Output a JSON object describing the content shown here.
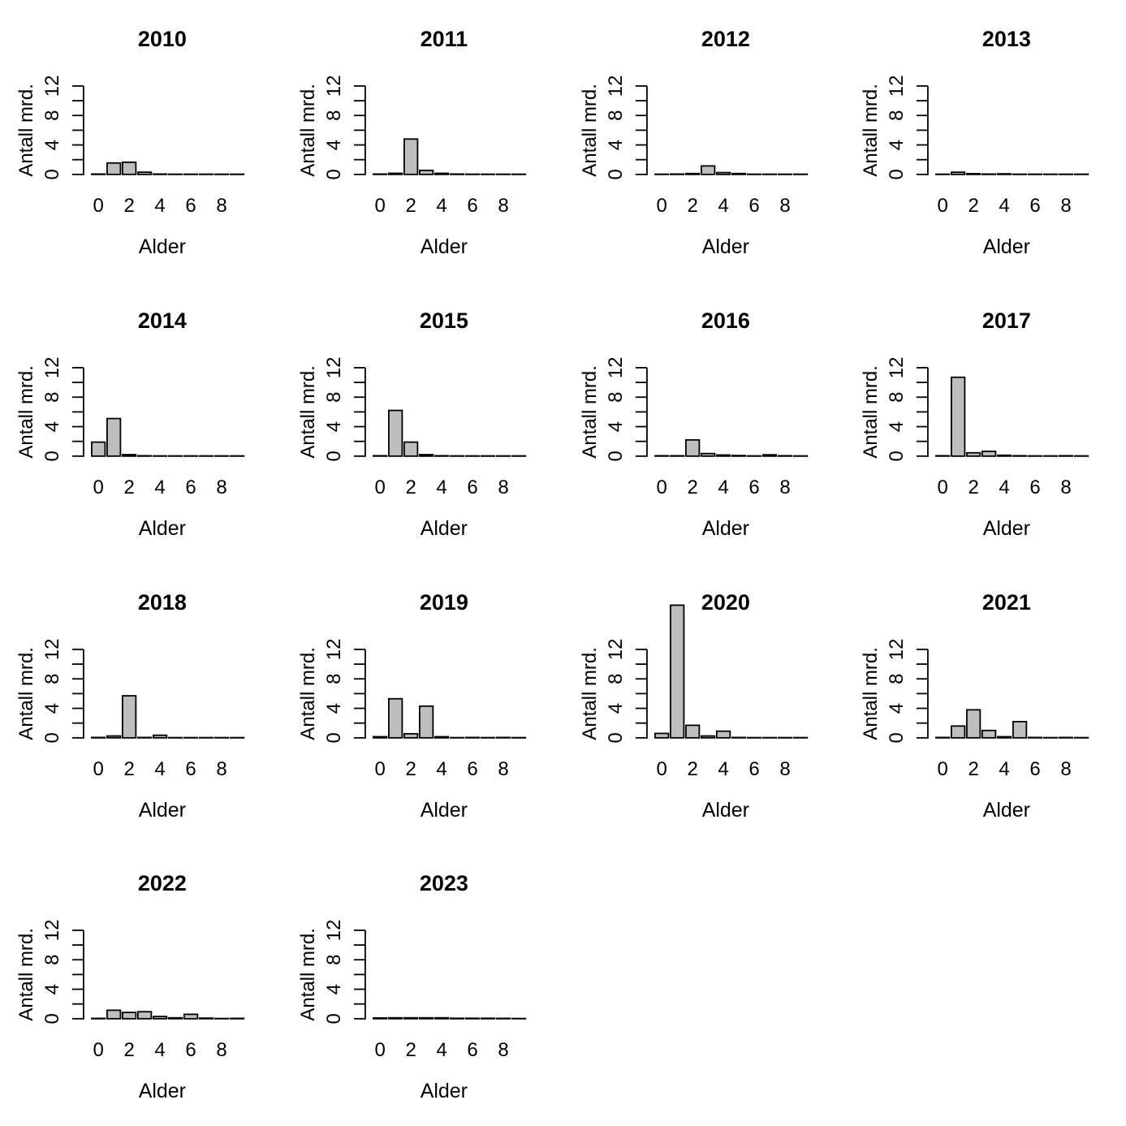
{
  "style": {
    "background": "#FFFFFF",
    "bar_fill": "#BEBEBE",
    "bar_stroke": "#000000",
    "axis_color": "#000000",
    "text_color": "#000000"
  },
  "chart_data": [
    {
      "type": "bar",
      "title": "2010",
      "xlabel": "Alder",
      "ylabel": "Antall mrd.",
      "categories": [
        0,
        1,
        2,
        3,
        4,
        5,
        6,
        7,
        8,
        9
      ],
      "values": [
        0.05,
        1.55,
        1.65,
        0.3,
        0.05,
        0.03,
        0.03,
        0.03,
        0.03,
        0.03
      ],
      "ylim": [
        0,
        12
      ],
      "ytick_labels": [
        0,
        4,
        8,
        12
      ],
      "ytick_marks": [
        0,
        2,
        4,
        6,
        8,
        10,
        12
      ],
      "xtick_labels": [
        0,
        2,
        4,
        6,
        8
      ],
      "grid": false,
      "legend": false
    },
    {
      "type": "bar",
      "title": "2011",
      "xlabel": "Alder",
      "ylabel": "Antall mrd.",
      "categories": [
        0,
        1,
        2,
        3,
        4,
        5,
        6,
        7,
        8,
        9
      ],
      "values": [
        0.05,
        0.15,
        4.8,
        0.55,
        0.15,
        0.05,
        0.03,
        0.03,
        0.03,
        0.03
      ],
      "ylim": [
        0,
        12
      ],
      "ytick_labels": [
        0,
        4,
        8,
        12
      ],
      "ytick_marks": [
        0,
        2,
        4,
        6,
        8,
        10,
        12
      ],
      "xtick_labels": [
        0,
        2,
        4,
        6,
        8
      ],
      "grid": false,
      "legend": false
    },
    {
      "type": "bar",
      "title": "2012",
      "xlabel": "Alder",
      "ylabel": "Antall mrd.",
      "categories": [
        0,
        1,
        2,
        3,
        4,
        5,
        6,
        7,
        8,
        9
      ],
      "values": [
        0.03,
        0.05,
        0.12,
        1.15,
        0.25,
        0.12,
        0.03,
        0.03,
        0.03,
        0.03
      ],
      "ylim": [
        0,
        12
      ],
      "ytick_labels": [
        0,
        4,
        8,
        12
      ],
      "ytick_marks": [
        0,
        2,
        4,
        6,
        8,
        10,
        12
      ],
      "xtick_labels": [
        0,
        2,
        4,
        6,
        8
      ],
      "grid": false,
      "legend": false
    },
    {
      "type": "bar",
      "title": "2013",
      "xlabel": "Alder",
      "ylabel": "Antall mrd.",
      "categories": [
        0,
        1,
        2,
        3,
        4,
        5,
        6,
        7,
        8,
        9
      ],
      "values": [
        0.03,
        0.3,
        0.1,
        0.05,
        0.08,
        0.03,
        0.03,
        0.03,
        0.03,
        0.03
      ],
      "ylim": [
        0,
        12
      ],
      "ytick_labels": [
        0,
        4,
        8,
        12
      ],
      "ytick_marks": [
        0,
        2,
        4,
        6,
        8,
        10,
        12
      ],
      "xtick_labels": [
        0,
        2,
        4,
        6,
        8
      ],
      "grid": false,
      "legend": false
    },
    {
      "type": "bar",
      "title": "2014",
      "xlabel": "Alder",
      "ylabel": "Antall mrd.",
      "categories": [
        0,
        1,
        2,
        3,
        4,
        5,
        6,
        7,
        8,
        9
      ],
      "values": [
        1.9,
        5.1,
        0.2,
        0.05,
        0.03,
        0.03,
        0.03,
        0.03,
        0.03,
        0.03
      ],
      "ylim": [
        0,
        12
      ],
      "ytick_labels": [
        0,
        4,
        8,
        12
      ],
      "ytick_marks": [
        0,
        2,
        4,
        6,
        8,
        10,
        12
      ],
      "xtick_labels": [
        0,
        2,
        4,
        6,
        8
      ],
      "grid": false,
      "legend": false
    },
    {
      "type": "bar",
      "title": "2015",
      "xlabel": "Alder",
      "ylabel": "Antall mrd.",
      "categories": [
        0,
        1,
        2,
        3,
        4,
        5,
        6,
        7,
        8,
        9
      ],
      "values": [
        0.05,
        6.2,
        1.9,
        0.2,
        0.05,
        0.03,
        0.03,
        0.03,
        0.03,
        0.03
      ],
      "ylim": [
        0,
        12
      ],
      "ytick_labels": [
        0,
        4,
        8,
        12
      ],
      "ytick_marks": [
        0,
        2,
        4,
        6,
        8,
        10,
        12
      ],
      "xtick_labels": [
        0,
        2,
        4,
        6,
        8
      ],
      "grid": false,
      "legend": false
    },
    {
      "type": "bar",
      "title": "2016",
      "xlabel": "Alder",
      "ylabel": "Antall mrd.",
      "categories": [
        0,
        1,
        2,
        3,
        4,
        5,
        6,
        7,
        8,
        9
      ],
      "values": [
        0.05,
        0.05,
        2.2,
        0.35,
        0.15,
        0.08,
        0.03,
        0.18,
        0.05,
        0.03
      ],
      "ylim": [
        0,
        12
      ],
      "ytick_labels": [
        0,
        4,
        8,
        12
      ],
      "ytick_marks": [
        0,
        2,
        4,
        6,
        8,
        10,
        12
      ],
      "xtick_labels": [
        0,
        2,
        4,
        6,
        8
      ],
      "grid": false,
      "legend": false
    },
    {
      "type": "bar",
      "title": "2017",
      "xlabel": "Alder",
      "ylabel": "Antall mrd.",
      "categories": [
        0,
        1,
        2,
        3,
        4,
        5,
        6,
        7,
        8,
        9
      ],
      "values": [
        0.05,
        10.7,
        0.45,
        0.65,
        0.12,
        0.05,
        0.03,
        0.03,
        0.05,
        0.03
      ],
      "ylim": [
        0,
        12
      ],
      "ytick_labels": [
        0,
        4,
        8,
        12
      ],
      "ytick_marks": [
        0,
        2,
        4,
        6,
        8,
        10,
        12
      ],
      "xtick_labels": [
        0,
        2,
        4,
        6,
        8
      ],
      "grid": false,
      "legend": false
    },
    {
      "type": "bar",
      "title": "2018",
      "xlabel": "Alder",
      "ylabel": "Antall mrd.",
      "categories": [
        0,
        1,
        2,
        3,
        4,
        5,
        6,
        7,
        8,
        9
      ],
      "values": [
        0.05,
        0.25,
        5.7,
        0.05,
        0.35,
        0.03,
        0.03,
        0.03,
        0.03,
        0.03
      ],
      "ylim": [
        0,
        12
      ],
      "ytick_labels": [
        0,
        4,
        8,
        12
      ],
      "ytick_marks": [
        0,
        2,
        4,
        6,
        8,
        10,
        12
      ],
      "xtick_labels": [
        0,
        2,
        4,
        6,
        8
      ],
      "grid": false,
      "legend": false
    },
    {
      "type": "bar",
      "title": "2019",
      "xlabel": "Alder",
      "ylabel": "Antall mrd.",
      "categories": [
        0,
        1,
        2,
        3,
        4,
        5,
        6,
        7,
        8,
        9
      ],
      "values": [
        0.15,
        5.3,
        0.55,
        4.3,
        0.15,
        0.03,
        0.05,
        0.03,
        0.05,
        0.03
      ],
      "ylim": [
        0,
        12
      ],
      "ytick_labels": [
        0,
        4,
        8,
        12
      ],
      "ytick_marks": [
        0,
        2,
        4,
        6,
        8,
        10,
        12
      ],
      "xtick_labels": [
        0,
        2,
        4,
        6,
        8
      ],
      "grid": false,
      "legend": false
    },
    {
      "type": "bar",
      "title": "2020",
      "xlabel": "Alder",
      "ylabel": "Antall mrd.",
      "categories": [
        0,
        1,
        2,
        3,
        4,
        5,
        6,
        7,
        8,
        9
      ],
      "values": [
        0.6,
        18.0,
        1.7,
        0.25,
        0.9,
        0.05,
        0.03,
        0.03,
        0.03,
        0.03
      ],
      "ylim": [
        0,
        12
      ],
      "ytick_labels": [
        0,
        4,
        8,
        12
      ],
      "ytick_marks": [
        0,
        2,
        4,
        6,
        8,
        10,
        12
      ],
      "xtick_labels": [
        0,
        2,
        4,
        6,
        8
      ],
      "grid": false,
      "legend": false,
      "note_bar_exceeds_axis": true
    },
    {
      "type": "bar",
      "title": "2021",
      "xlabel": "Alder",
      "ylabel": "Antall mrd.",
      "categories": [
        0,
        1,
        2,
        3,
        4,
        5,
        6,
        7,
        8,
        9
      ],
      "values": [
        0.05,
        1.6,
        3.8,
        1.0,
        0.15,
        2.2,
        0.05,
        0.03,
        0.05,
        0.03
      ],
      "ylim": [
        0,
        12
      ],
      "ytick_labels": [
        0,
        4,
        8,
        12
      ],
      "ytick_marks": [
        0,
        2,
        4,
        6,
        8,
        10,
        12
      ],
      "xtick_labels": [
        0,
        2,
        4,
        6,
        8
      ],
      "grid": false,
      "legend": false
    },
    {
      "type": "bar",
      "title": "2022",
      "xlabel": "Alder",
      "ylabel": "Antall mrd.",
      "categories": [
        0,
        1,
        2,
        3,
        4,
        5,
        6,
        7,
        8,
        9
      ],
      "values": [
        0.05,
        1.15,
        0.85,
        0.95,
        0.3,
        0.12,
        0.6,
        0.08,
        0.03,
        0.05
      ],
      "ylim": [
        0,
        12
      ],
      "ytick_labels": [
        0,
        4,
        8,
        12
      ],
      "ytick_marks": [
        0,
        2,
        4,
        6,
        8,
        10,
        12
      ],
      "xtick_labels": [
        0,
        2,
        4,
        6,
        8
      ],
      "grid": false,
      "legend": false
    },
    {
      "type": "bar",
      "title": "2023",
      "xlabel": "Alder",
      "ylabel": "Antall mrd.",
      "categories": [
        0,
        1,
        2,
        3,
        4,
        5,
        6,
        7,
        8,
        9
      ],
      "values": [
        0.1,
        0.12,
        0.12,
        0.12,
        0.12,
        0.06,
        0.06,
        0.06,
        0.05,
        0.03
      ],
      "ylim": [
        0,
        12
      ],
      "ytick_labels": [
        0,
        4,
        8,
        12
      ],
      "ytick_marks": [
        0,
        2,
        4,
        6,
        8,
        10,
        12
      ],
      "xtick_labels": [
        0,
        2,
        4,
        6,
        8
      ],
      "grid": false,
      "legend": false
    }
  ]
}
